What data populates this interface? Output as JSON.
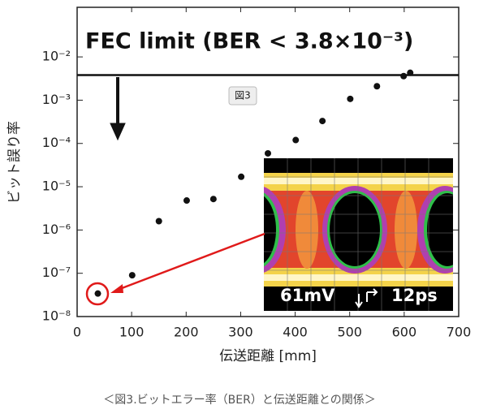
{
  "chart_data": {
    "type": "scatter",
    "annotation": "FEC limit (BER < 3.8×10⁻³)",
    "threshold": 0.0038,
    "figure_badge": "図3",
    "inset_labels": [
      "61mV",
      "12ps"
    ],
    "xlabel": "伝送距離 [mm]",
    "ylabel": "ビット誤り率",
    "caption": "＜図3.ビットエラー率（BER）と伝送距離との関係＞",
    "x": [
      38,
      101,
      150,
      201,
      250,
      301,
      350,
      401,
      450,
      501,
      550,
      599,
      611
    ],
    "values": [
      3.4e-08,
      9e-08,
      1.6e-06,
      4.8e-06,
      5.2e-06,
      1.7e-05,
      5.9e-05,
      0.00012,
      0.00033,
      0.00107,
      0.0021,
      0.0036,
      0.0043
    ],
    "color": "#111111",
    "log_y": true,
    "xlim": [
      0,
      700
    ],
    "xticks": [
      0,
      100,
      200,
      300,
      400,
      500,
      600,
      700
    ],
    "ylim": [
      1e-08,
      0.14
    ],
    "yticks": [
      {
        "value": 1e-08,
        "label": "10⁻⁸"
      },
      {
        "value": 1e-07,
        "label": "10⁻⁷"
      },
      {
        "value": 1e-06,
        "label": "10⁻⁶"
      },
      {
        "value": 1e-05,
        "label": "10⁻⁵"
      },
      {
        "value": 0.0001,
        "label": "10⁻⁴"
      },
      {
        "value": 0.001,
        "label": "10⁻³"
      },
      {
        "value": 0.01,
        "label": "10⁻²"
      }
    ]
  }
}
